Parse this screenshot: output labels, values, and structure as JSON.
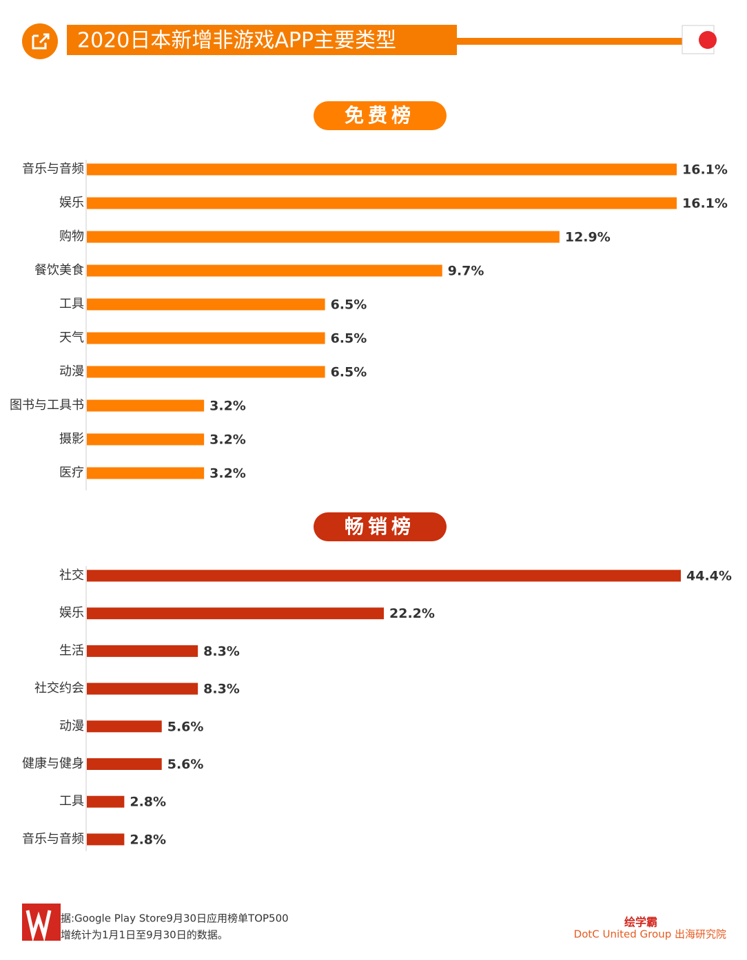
{
  "header": {
    "title": "2020日本新增非游戏APP主要类型"
  },
  "chart_data": [
    {
      "type": "bar",
      "title": "免费榜",
      "categories": [
        "音乐与音频",
        "娱乐",
        "购物",
        "餐饮美食",
        "工具",
        "天气",
        "动漫",
        "图书与工具书",
        "摄影",
        "医疗"
      ],
      "values": [
        16.1,
        16.1,
        12.9,
        9.7,
        6.5,
        6.5,
        6.5,
        3.2,
        3.2,
        3.2
      ],
      "value_labels": [
        "16.1%",
        "16.1%",
        "12.9%",
        "9.7%",
        "6.5%",
        "6.5%",
        "6.5%",
        "3.2%",
        "3.2%",
        "3.2%"
      ],
      "color": "#ff7f00"
    },
    {
      "type": "bar",
      "title": "畅销榜",
      "categories": [
        "社交",
        "娱乐",
        "生活",
        "社交约会",
        "动漫",
        "健康与健身",
        "工具",
        "音乐与音频"
      ],
      "values": [
        44.4,
        22.2,
        8.3,
        8.3,
        5.6,
        5.6,
        2.8,
        2.8
      ],
      "value_labels": [
        "44.4%",
        "22.2%",
        "8.3%",
        "8.3%",
        "5.6%",
        "5.6%",
        "2.8%",
        "2.8%"
      ],
      "color": "#c9300e"
    }
  ],
  "footer": {
    "source": [
      "据:Google Play Store9月30日应用榜单TOP500",
      "增统计为1月1日至9月30日的数据。"
    ],
    "brand": "绘学霸",
    "org": "DotC United Group 出海研究院"
  }
}
